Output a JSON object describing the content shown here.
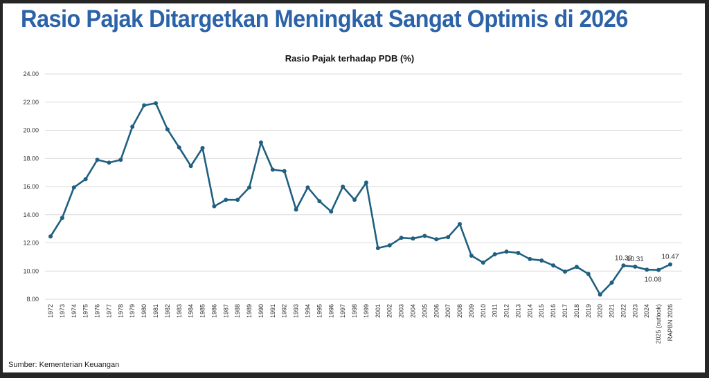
{
  "page_title": "Rasio Pajak Ditargetkan Meningkat Sangat Optimis di 2026",
  "source": "Sumber: Kementerian Keuangan",
  "chart_data": {
    "type": "line",
    "title": "Rasio Pajak terhadap PDB (%)",
    "xlabel": "",
    "ylabel": "",
    "ylim": [
      8,
      24
    ],
    "yticks": [
      "8.00",
      "10.00",
      "12.00",
      "14.00",
      "16.00",
      "18.00",
      "20.00",
      "22.00",
      "24.00"
    ],
    "grid": true,
    "line_color": "#1f5f80",
    "categories": [
      "1972",
      "1973",
      "1974",
      "1975",
      "1976",
      "1977",
      "1978",
      "1979",
      "1980",
      "1981",
      "1982",
      "1983",
      "1984",
      "1985",
      "1986",
      "1987",
      "1988",
      "1989",
      "1990",
      "1991",
      "1992",
      "1993",
      "1994",
      "1995",
      "1996",
      "1997",
      "1998",
      "1999",
      "2001",
      "2002",
      "2003",
      "2004",
      "2005",
      "2006",
      "2007",
      "2008",
      "2009",
      "2010",
      "2011",
      "2012",
      "2013",
      "2014",
      "2015",
      "2016",
      "2017",
      "2018",
      "2019",
      "2020",
      "2021",
      "2022",
      "2023",
      "2024",
      "2025 (outlook)",
      "RAPBN 2026"
    ],
    "values": [
      12.46,
      13.78,
      15.94,
      16.53,
      17.9,
      17.7,
      17.9,
      20.25,
      21.77,
      21.92,
      20.06,
      18.78,
      17.46,
      18.74,
      14.6,
      15.06,
      15.06,
      15.94,
      19.13,
      17.2,
      17.1,
      14.37,
      15.94,
      14.96,
      14.23,
      15.99,
      15.06,
      16.28,
      11.63,
      11.82,
      12.36,
      12.31,
      12.5,
      12.26,
      12.41,
      13.34,
      11.09,
      10.6,
      11.19,
      11.38,
      11.29,
      10.85,
      10.75,
      10.4,
      9.96,
      10.3,
      9.8,
      8.33,
      9.18,
      10.39,
      10.31,
      10.1,
      10.08,
      10.47
    ],
    "data_labels": [
      {
        "category": "2022",
        "text": "10.39",
        "position": "above"
      },
      {
        "category": "2023",
        "text": "10.31",
        "position": "above"
      },
      {
        "category": "2025 (outlook)",
        "text": "10.08",
        "position": "below"
      },
      {
        "category": "RAPBN 2026",
        "text": "10.47",
        "position": "above"
      }
    ]
  }
}
